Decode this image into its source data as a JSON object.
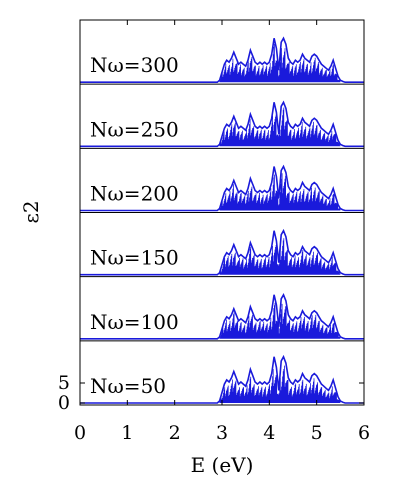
{
  "chart_data": {
    "type": "line",
    "xlabel": "E (eV)",
    "ylabel": "ε2",
    "xlim": [
      0,
      6
    ],
    "x_ticks": [
      "0",
      "1",
      "2",
      "3",
      "4",
      "5",
      "6"
    ],
    "y_ticks": [
      "0",
      "5"
    ],
    "series_color": "#1a1adb",
    "panels": [
      {
        "label": "Nω=300"
      },
      {
        "label": "Nω=250"
      },
      {
        "label": "Nω=200"
      },
      {
        "label": "Nω=150"
      },
      {
        "label": "Nω=100"
      },
      {
        "label": "Nω=50"
      }
    ],
    "spectrum": {
      "x": [
        0,
        2.9,
        2.95,
        3.0,
        3.05,
        3.1,
        3.15,
        3.2,
        3.25,
        3.3,
        3.35,
        3.4,
        3.45,
        3.5,
        3.55,
        3.6,
        3.65,
        3.7,
        3.75,
        3.8,
        3.85,
        3.9,
        3.95,
        4.0,
        4.05,
        4.1,
        4.15,
        4.2,
        4.25,
        4.3,
        4.35,
        4.4,
        4.45,
        4.5,
        4.55,
        4.6,
        4.65,
        4.7,
        4.75,
        4.8,
        4.85,
        4.9,
        4.95,
        5.0,
        5.05,
        5.1,
        5.15,
        5.2,
        5.25,
        5.3,
        5.35,
        5.4,
        5.45,
        5.5,
        5.55,
        5.6,
        5.65,
        6.0
      ],
      "y": [
        0,
        0,
        0.5,
        2.5,
        4.5,
        5.5,
        5.0,
        6.0,
        7.5,
        6.0,
        4.5,
        5.0,
        4.5,
        4.0,
        5.5,
        8.0,
        6.5,
        5.0,
        4.5,
        5.0,
        4.5,
        5.0,
        4.5,
        5.0,
        7.0,
        11.0,
        8.5,
        3.0,
        10.0,
        11.0,
        9.5,
        6.0,
        5.0,
        4.5,
        5.5,
        5.0,
        5.5,
        7.0,
        6.0,
        5.5,
        5.0,
        6.5,
        7.0,
        6.5,
        5.5,
        4.5,
        4.0,
        3.5,
        3.0,
        4.0,
        5.5,
        3.5,
        1.5,
        0.5,
        0.2,
        0,
        0,
        0
      ]
    }
  }
}
